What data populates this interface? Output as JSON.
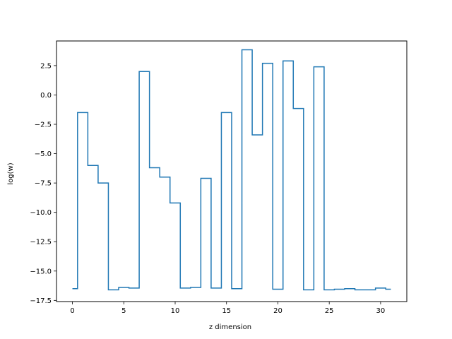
{
  "chart_data": {
    "type": "line",
    "drawstyle": "steps-mid",
    "title": "",
    "xlabel": "z dimension",
    "ylabel": "log(w)",
    "xlim": [
      -1.55,
      32.55
    ],
    "ylim": [
      -17.6,
      4.6
    ],
    "xticks": [
      0,
      5,
      10,
      15,
      20,
      25,
      30
    ],
    "xtick_labels": [
      "0",
      "5",
      "10",
      "15",
      "20",
      "25",
      "30"
    ],
    "yticks": [
      2.5,
      0.0,
      -2.5,
      -5.0,
      -7.5,
      -10.0,
      -12.5,
      -15.0,
      -17.5
    ],
    "ytick_labels": [
      "2.5",
      "0.0",
      "−2.5",
      "−5.0",
      "−7.5",
      "−10.0",
      "−12.5",
      "−15.0",
      "−17.5"
    ],
    "grid": false,
    "color": "#1f77b4",
    "x": [
      0,
      1,
      2,
      3,
      4,
      5,
      6,
      7,
      8,
      9,
      10,
      11,
      12,
      13,
      14,
      15,
      16,
      17,
      18,
      19,
      20,
      21,
      22,
      23,
      24,
      25,
      26,
      27,
      28,
      29,
      30,
      31
    ],
    "y": [
      -16.5,
      -1.5,
      -6.0,
      -7.5,
      -16.6,
      -16.4,
      -16.45,
      2.0,
      -6.2,
      -7.0,
      -9.2,
      -16.45,
      -16.4,
      -7.1,
      -16.45,
      -1.5,
      -16.5,
      3.85,
      -3.4,
      2.7,
      -16.55,
      2.9,
      -1.15,
      -16.6,
      2.4,
      -16.6,
      -16.55,
      -16.5,
      -16.6,
      -16.6,
      -16.45,
      -16.55
    ]
  }
}
